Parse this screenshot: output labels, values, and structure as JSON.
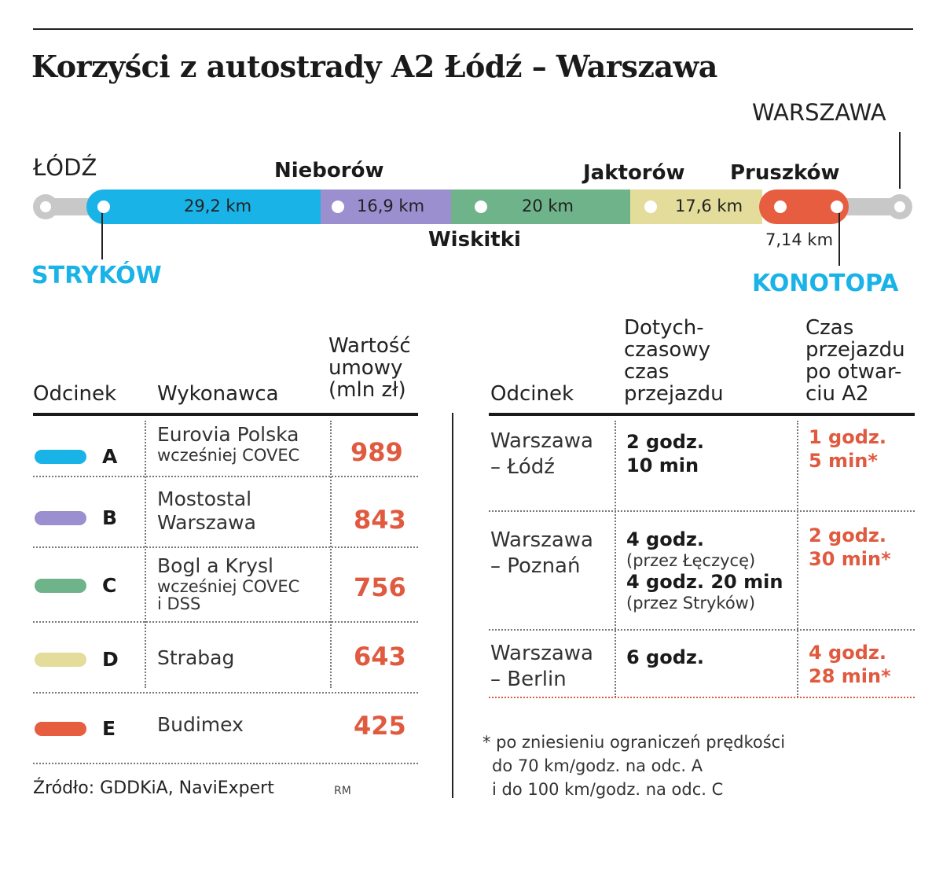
{
  "title": "Korzyści z autostrady A2 Łódź – Warszawa",
  "colors": {
    "A": "#1ab3e8",
    "B": "#9b8fd0",
    "C": "#6fb38a",
    "D": "#e3dc9a",
    "E": "#e65d40",
    "accent_blue": "#1ab3e8",
    "accent_red": "#e05a3f",
    "rail": "#c8c8c8"
  },
  "map": {
    "city_start": "ŁÓDŹ",
    "city_end": "WARSZAWA",
    "towns_top": [
      "Nieborów",
      "Jaktorów",
      "Pruszków"
    ],
    "towns_bottom": [
      "Wiskitki"
    ],
    "node_start": "STRYKÓW",
    "node_end": "KONOTOPA",
    "segments": [
      "29,2 km",
      "16,9 km",
      "20 km",
      "17,6 km",
      "7,14 km"
    ]
  },
  "contracts": {
    "headers": {
      "section": "Odcinek",
      "contractor": "Wykonawca",
      "value": "Wartość umowy (mln zł)"
    },
    "value_header_lines": [
      "Wartość",
      "umowy",
      "(mln zł)"
    ],
    "rows": [
      {
        "letter": "A",
        "name": "Eurovia Polska",
        "sub": "wcześniej COVEC",
        "value": "989"
      },
      {
        "letter": "B",
        "name": "Mostostal",
        "name2": "Warszawa",
        "value": "843"
      },
      {
        "letter": "C",
        "name": "Bogl a Krysl",
        "sub": "wcześniej COVEC",
        "sub2": "i DSS",
        "value": "756"
      },
      {
        "letter": "D",
        "name": "Strabag",
        "value": "643"
      },
      {
        "letter": "E",
        "name": "Budimex",
        "value": "425"
      }
    ]
  },
  "times": {
    "headers": {
      "section": "Odcinek",
      "before_lines": [
        "Dotych-",
        "czasowy",
        "czas",
        "przejazdu"
      ],
      "after_lines": [
        "Czas",
        "przejazdu",
        "po otwar-",
        "ciu A2"
      ]
    },
    "rows": [
      {
        "route1": "Warszawa",
        "route2": "– Łódź",
        "before1": "2 godz.",
        "before2": "10 min",
        "after1": "1 godz.",
        "after2": "5 min*"
      },
      {
        "route1": "Warszawa",
        "route2": "– Poznań",
        "before1": "4 godz.",
        "via1": "(przez Łęczycę)",
        "before2": "4 godz. 20 min",
        "via2": "(przez Stryków)",
        "after1": "2 godz.",
        "after2": "30 min*"
      },
      {
        "route1": "Warszawa",
        "route2": "– Berlin",
        "before1": "6 godz.",
        "after1": "4 godz.",
        "after2": "28 min*"
      }
    ]
  },
  "footnote": [
    "* po zniesieniu ograniczeń prędkości",
    "do 70 km/godz. na odc. A",
    "i do 100 km/godz. na odc. C"
  ],
  "source": "Źródło: GDDKiA, NaviExpert",
  "author": "RM"
}
